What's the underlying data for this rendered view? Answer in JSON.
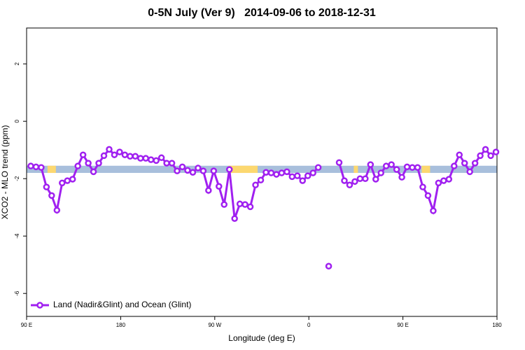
{
  "chart_data": {
    "type": "line",
    "title": "0-5N July (Ver 9)   2014-09-06 to 2018-12-31",
    "x_label": "Longitude (deg E)",
    "y_label": "XCO2 - MLO trend (ppm)",
    "xlim": [
      90,
      540
    ],
    "ylim": [
      -6.8,
      3.25
    ],
    "xticks": [
      {
        "value": 90,
        "label": "90 E"
      },
      180,
      {
        "value": 270,
        "label": "90 W"
      },
      {
        "value": 360,
        "label": "0"
      },
      {
        "value": 450,
        "label": "90 E"
      },
      {
        "value": 540,
        "label": "180"
      }
    ],
    "yticks": [
      -6,
      -4,
      -2,
      0,
      2
    ],
    "legend": "bottomleft",
    "band": {
      "ylim": [
        -1.55,
        -1.8
      ],
      "color": "#a8bfdc",
      "segments": [
        {
          "x": [
            110,
            118
          ],
          "color": "#fcd870"
        },
        {
          "x": [
            283,
            311
          ],
          "color": "#fcd870"
        },
        {
          "x": [
            403,
            407
          ],
          "color": "#fcd870"
        },
        {
          "x": [
            468,
            476
          ],
          "color": "#fcd870"
        }
      ]
    },
    "x": [
      94,
      99,
      104,
      109,
      114,
      119,
      124,
      129,
      134,
      139,
      144,
      149,
      154,
      159,
      164,
      169,
      174,
      179,
      184,
      189,
      194,
      199,
      204,
      209,
      214,
      219,
      224,
      229,
      234,
      239,
      244,
      249,
      254,
      259,
      264,
      269,
      274,
      279,
      284,
      289,
      294,
      299,
      304,
      309,
      314,
      319,
      324,
      329,
      334,
      339,
      344,
      349,
      354,
      359,
      364,
      369,
      374,
      379,
      384,
      389,
      394,
      399,
      404,
      409,
      414,
      419,
      424,
      429,
      434,
      439,
      444,
      449,
      454,
      459,
      464,
      469,
      474,
      479,
      484,
      489,
      494,
      499,
      504,
      509,
      514,
      519,
      524,
      529,
      534,
      539
    ],
    "series": [
      {
        "name": "Land (Nadir&Glint) and Ocean (Glint)",
        "color": "#a020f0",
        "values": [
          -1.56,
          -1.59,
          -1.61,
          -2.29,
          -2.59,
          -3.1,
          -2.15,
          -2.07,
          -2.02,
          -1.56,
          -1.17,
          -1.46,
          -1.76,
          -1.46,
          -1.2,
          -0.98,
          -1.17,
          -1.07,
          -1.17,
          -1.22,
          -1.22,
          -1.29,
          -1.29,
          -1.34,
          -1.37,
          -1.27,
          -1.46,
          -1.46,
          -1.73,
          -1.59,
          -1.71,
          -1.78,
          -1.63,
          -1.73,
          -2.41,
          -1.73,
          -2.27,
          -2.9,
          -1.68,
          -3.39,
          -2.88,
          -2.9,
          -2.98,
          -2.22,
          -2.05,
          -1.78,
          -1.8,
          -1.85,
          -1.8,
          -1.76,
          -1.93,
          -1.9,
          -2.07,
          -1.9,
          -1.8,
          -1.61,
          null,
          -5.05,
          null,
          -1.44,
          -2.07,
          -2.22,
          -2.1,
          -2.0,
          -2.0,
          -1.51,
          -2.02,
          -1.8,
          -1.56,
          -1.51,
          -1.68,
          -1.95,
          -1.59,
          -1.61,
          -1.61,
          -2.29,
          -2.59,
          -3.12,
          -2.15,
          -2.07,
          -2.02,
          -1.56,
          -1.17,
          -1.46,
          -1.76,
          -1.46,
          -1.2,
          -0.98,
          -1.2,
          -1.07
        ]
      }
    ]
  }
}
